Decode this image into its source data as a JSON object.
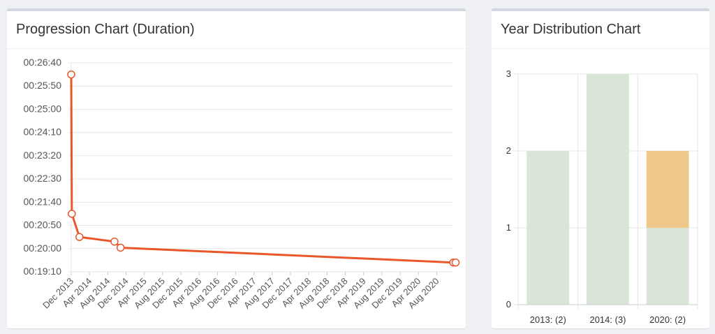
{
  "progression_card": {
    "title": "Progression Chart (Duration)"
  },
  "year_card": {
    "title": "Year Distribution Chart"
  },
  "colors": {
    "line": "#e8572a",
    "bar_green": "#d9e6d7",
    "bar_orange": "#f0c88a",
    "grid": "#e6e6e6",
    "axis_text": "#555555"
  },
  "chart_data": [
    {
      "type": "line",
      "title": "Progression Chart (Duration)",
      "xlabel": "",
      "ylabel": "",
      "x_ticks": [
        "Dec 2013",
        "Apr 2014",
        "Aug 2014",
        "Dec 2014",
        "Apr 2015",
        "Aug 2015",
        "Dec 2015",
        "Apr 2016",
        "Aug 2016",
        "Dec 2016",
        "Apr 2017",
        "Aug 2017",
        "Dec 2017",
        "Apr 2018",
        "Aug 2018",
        "Dec 2018",
        "Apr 2019",
        "Aug 2019",
        "Dec 2019",
        "Apr 2020",
        "Aug 2020"
      ],
      "y_ticks": [
        "00:19:10",
        "00:20:00",
        "00:20:50",
        "00:21:40",
        "00:22:30",
        "00:23:20",
        "00:24:10",
        "00:25:00",
        "00:25:50",
        "00:26:40"
      ],
      "ylim": [
        "00:19:10",
        "00:26:40"
      ],
      "grid": true,
      "series": [
        {
          "points": [
            {
              "x": "2013-12-01",
              "y": "00:26:15"
            },
            {
              "x": "2013-12-05",
              "y": "00:21:15"
            },
            {
              "x": "2014-01-25",
              "y": "00:20:25"
            },
            {
              "x": "2014-09-15",
              "y": "00:20:15"
            },
            {
              "x": "2014-10-25",
              "y": "00:20:02"
            },
            {
              "x": "2020-11-20",
              "y": "00:19:30"
            },
            {
              "x": "2020-12-05",
              "y": "00:19:30"
            }
          ]
        }
      ]
    },
    {
      "type": "bar",
      "title": "Year Distribution Chart",
      "categories": [
        "2013: (2)",
        "2014: (3)",
        "2020: (2)"
      ],
      "series": [
        {
          "values": [
            2,
            3,
            1
          ],
          "color": "#d9e6d7"
        },
        {
          "values": [
            0,
            0,
            1
          ],
          "color": "#f0c88a"
        }
      ],
      "stacked": true,
      "y_ticks": [
        "0",
        "1",
        "2",
        "3"
      ],
      "ylim": [
        0,
        3
      ],
      "grid": true
    }
  ]
}
